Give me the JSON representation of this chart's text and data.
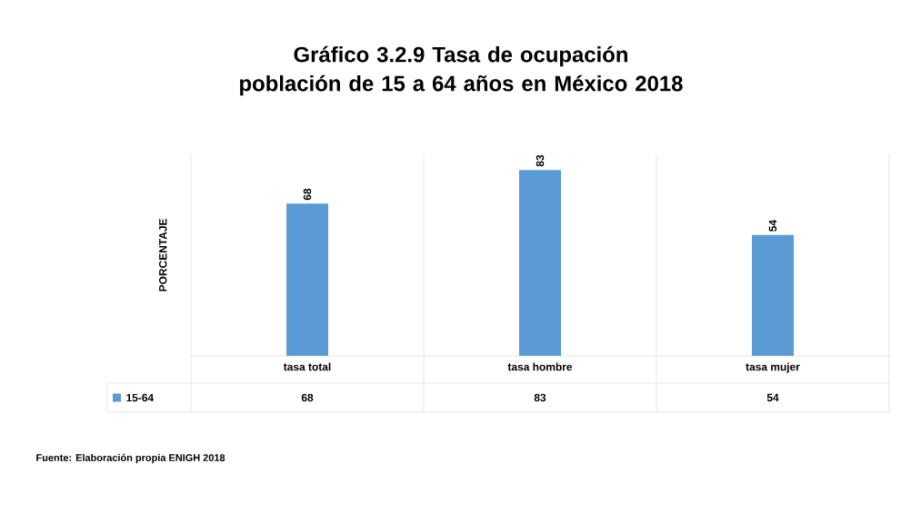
{
  "chart_data": {
    "type": "bar",
    "title": "Gráfico 3.2.9   Tasa de  ocupación población de 15 a 64 años en México 2018",
    "ylabel": "PORCENTAJE",
    "categories": [
      "tasa total",
      "tasa hombre",
      "tasa mujer"
    ],
    "series": [
      {
        "name": "15-64",
        "color": "#5b9bd5",
        "values": [
          68,
          83,
          54
        ],
        "value_labels": [
          "68",
          "83",
          "54"
        ]
      }
    ],
    "ylim": [
      0,
      90
    ],
    "data_labels": true,
    "legend": "bottom",
    "annotations": [
      "Fuente: Elaboración propia ENIGH 2018"
    ]
  }
}
